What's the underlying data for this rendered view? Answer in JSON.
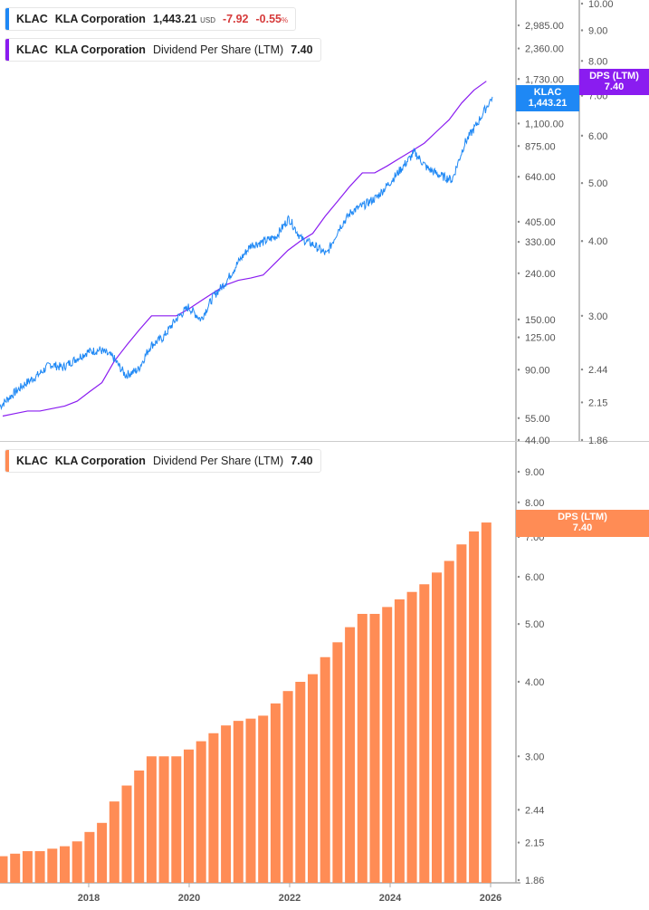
{
  "legend_price": {
    "ticker": "KLAC",
    "name": "KLA Corporation",
    "price": "1,443.21",
    "currency": "USD",
    "change": "-7.92",
    "change_pct": "-0.55",
    "pct_sign": "%"
  },
  "legend_dps_top": {
    "ticker": "KLAC",
    "name": "KLA Corporation",
    "metric": "Dividend Per Share (LTM)",
    "value": "7.40"
  },
  "legend_dps_bottom": {
    "ticker": "KLAC",
    "name": "KLA Corporation",
    "metric": "Dividend Per Share (LTM)",
    "value": "7.40"
  },
  "tags": {
    "price_ticker": "KLAC",
    "price_value": "1,443.21",
    "dps_label": "DPS (LTM)",
    "dps_value": "7.40",
    "dps_bottom_label": "DPS (LTM)",
    "dps_bottom_value": "7.40"
  },
  "colors": {
    "price": "#1e88f5",
    "dps_line": "#8a1cf0",
    "dps_bar": "#ff8c55",
    "negative": "#d63b3b"
  },
  "chart_data": [
    {
      "type": "line",
      "pane": "top",
      "series": [
        {
          "name": "KLAC",
          "axis": "left-price",
          "x": [
            2016.25,
            2016.5,
            2016.75,
            2017.0,
            2017.25,
            2017.5,
            2017.75,
            2018.0,
            2018.25,
            2018.5,
            2018.75,
            2019.0,
            2019.25,
            2019.5,
            2019.75,
            2020.0,
            2020.25,
            2020.5,
            2020.75,
            2021.0,
            2021.25,
            2021.5,
            2021.75,
            2022.0,
            2022.25,
            2022.5,
            2022.75,
            2023.0,
            2023.25,
            2023.5,
            2023.75,
            2024.0,
            2024.25,
            2024.5,
            2024.75,
            2025.0,
            2025.25,
            2025.5,
            2025.75,
            2026.05
          ],
          "values": [
            62,
            70,
            78,
            85,
            95,
            92,
            100,
            108,
            110,
            102,
            85,
            90,
            115,
            125,
            150,
            170,
            150,
            190,
            220,
            270,
            320,
            330,
            350,
            420,
            340,
            320,
            290,
            380,
            450,
            480,
            520,
            600,
            700,
            820,
            700,
            650,
            620,
            900,
            1100,
            1443.21
          ]
        },
        {
          "name": "Dividend Per Share (LTM)",
          "axis": "right-dps",
          "values_ref": "dps"
        }
      ],
      "price_ticks": [
        "2,985.00",
        "2,360.00",
        "1,730.00",
        "1,100.00",
        "875.00",
        "640.00",
        "405.00",
        "330.00",
        "240.00",
        "150.00",
        "125.00",
        "90.00",
        "55.00",
        "44.00"
      ],
      "dps_ticks": [
        "10.00",
        "9.00",
        "8.00",
        "7.00",
        "6.00",
        "5.00",
        "4.00",
        "3.00",
        "2.44",
        "2.15",
        "1.86"
      ],
      "scale": "log"
    },
    {
      "type": "bar",
      "pane": "bottom",
      "scale": "log",
      "ylim": [
        1.86,
        10
      ],
      "dps": [
        2.04,
        2.06,
        2.08,
        2.08,
        2.1,
        2.12,
        2.16,
        2.24,
        2.32,
        2.52,
        2.68,
        2.84,
        3.0,
        3.0,
        3.0,
        3.08,
        3.18,
        3.28,
        3.38,
        3.44,
        3.47,
        3.51,
        3.68,
        3.86,
        4.0,
        4.12,
        4.4,
        4.66,
        4.94,
        5.2,
        5.2,
        5.34,
        5.5,
        5.66,
        5.83,
        6.1,
        6.38,
        6.8,
        7.15,
        7.4
      ],
      "x_start": 2016.25,
      "x_step": 0.25,
      "y_ticks": [
        "9.00",
        "8.00",
        "7.00",
        "6.00",
        "5.00",
        "4.00",
        "3.00",
        "2.44",
        "2.15",
        "1.86"
      ],
      "x_ticks": [
        "2018",
        "2020",
        "2022",
        "2024",
        "2026"
      ]
    }
  ]
}
